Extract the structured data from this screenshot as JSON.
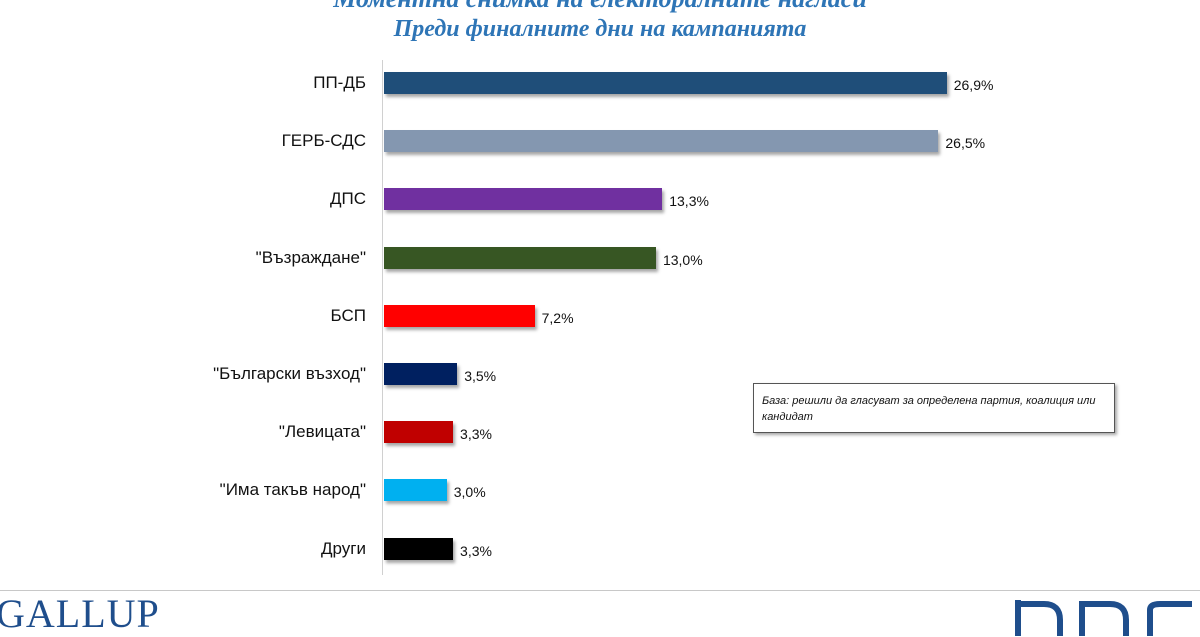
{
  "chart_data": {
    "type": "bar",
    "orientation": "horizontal",
    "title": "Моментна снимка на електоралните нагласи",
    "subtitle": "Преди финалните дни на кампанията",
    "categories": [
      "ПП-ДБ",
      "ГЕРБ-СДС",
      "ДПС",
      "\"Възраждане\"",
      "БСП",
      "\"Български възход\"",
      "\"Левицата\"",
      "\"Има такъв народ\"",
      "Други"
    ],
    "values": [
      26.9,
      26.5,
      13.3,
      13.0,
      7.2,
      3.5,
      3.3,
      3.0,
      3.3
    ],
    "value_labels": [
      "26,9%",
      "26,5%",
      "13,3%",
      "13,0%",
      "7,2%",
      "3,5%",
      "3,3%",
      "3,0%",
      "3,3%"
    ],
    "colors": [
      "#1f4e79",
      "#8497b0",
      "#7030a0",
      "#375623",
      "#ff0000",
      "#002060",
      "#c00000",
      "#00b0f0",
      "#000000"
    ],
    "xlim": [
      0,
      30
    ],
    "grid": false,
    "legend": "none"
  },
  "note": "База: решили да гласуват за определена партия, коалиция или кандидат",
  "footer": {
    "left_logo": "GALLUP",
    "right_logo_icon": "bnr-logo"
  }
}
